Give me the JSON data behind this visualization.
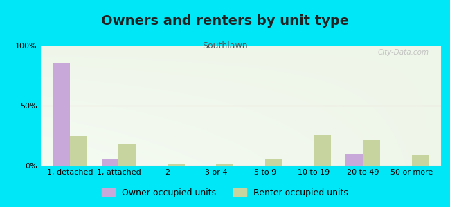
{
  "title": "Owners and renters by unit type",
  "subtitle": "Southlawn",
  "categories": [
    "1, detached",
    "1, attached",
    "2",
    "3 or 4",
    "5 to 9",
    "10 to 19",
    "20 to 49",
    "50 or more"
  ],
  "owner_values": [
    85,
    5,
    0,
    0,
    0,
    0,
    10,
    0
  ],
  "renter_values": [
    25,
    18,
    1,
    2,
    5,
    26,
    21,
    9
  ],
  "owner_color": "#c8a8d8",
  "renter_color": "#c8d4a0",
  "outer_background": "#00e8f8",
  "ylim": [
    0,
    100
  ],
  "yticks": [
    0,
    50,
    100
  ],
  "ytick_labels": [
    "0%",
    "50%",
    "100%"
  ],
  "bar_width": 0.35,
  "title_fontsize": 14,
  "subtitle_fontsize": 9,
  "tick_fontsize": 8,
  "legend_fontsize": 9,
  "watermark": "City-Data.com"
}
